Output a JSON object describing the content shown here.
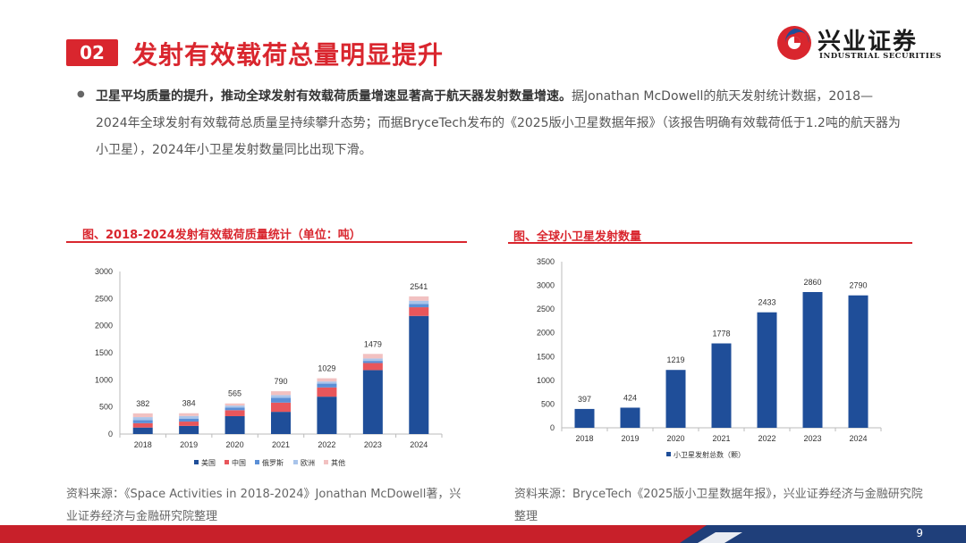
{
  "header": {
    "section_no": "02",
    "title": "发射有效载荷总量明显提升",
    "logo_cn": "兴业证券",
    "logo_en": "INDUSTRIAL SECURITIES"
  },
  "body": {
    "bold_text": "卫星平均质量的提升，推动全球发射有效载荷质量增速显著高于航天器发射数量增速。",
    "text": "据Jonathan McDowell的航天发射统计数据，2018—2024年全球发射有效载荷总质量呈持续攀升态势；而据BryceTech发布的《2025版小卫星数据年报》（该报告明确有效载荷低于1.2吨的航天器为小卫星），2024年小卫星发射数量同比出现下滑。"
  },
  "chart1": {
    "title": "图、2018-2024发射有效载荷质量统计（单位：吨）",
    "source": "资料来源：《Space Activities in 2018-2024》Jonathan McDowell著，兴业证券经济与金融研究院整理"
  },
  "chart2": {
    "title": "图、全球小卫星发射数量",
    "source": "资料来源：BryceTech《2025版小卫星数据年报》，兴业证券经济与金融研究院整理"
  },
  "page_number": "9",
  "chart_data": [
    {
      "type": "bar",
      "stacked": true,
      "categories": [
        "2018",
        "2019",
        "2020",
        "2021",
        "2022",
        "2023",
        "2024"
      ],
      "series": [
        {
          "name": "美国",
          "color": "#1f4e99",
          "values": [
            120,
            150,
            330,
            410,
            690,
            1180,
            2180
          ]
        },
        {
          "name": "中国",
          "color": "#e8565b",
          "values": [
            80,
            80,
            110,
            170,
            170,
            130,
            160
          ]
        },
        {
          "name": "俄罗斯",
          "color": "#5b8fd6",
          "values": [
            55,
            55,
            50,
            90,
            70,
            40,
            60
          ]
        },
        {
          "name": "欧洲",
          "color": "#a9c4ea",
          "values": [
            57,
            49,
            35,
            50,
            40,
            45,
            61
          ]
        },
        {
          "name": "其他",
          "color": "#f2c1c1",
          "values": [
            70,
            50,
            40,
            70,
            59,
            84,
            80
          ]
        }
      ],
      "totals": [
        382,
        384,
        565,
        790,
        1029,
        1479,
        2541
      ],
      "ylim": [
        0,
        3000
      ],
      "yticks": [
        0,
        500,
        1000,
        1500,
        2000,
        2500,
        3000
      ],
      "legend": "bottom"
    },
    {
      "type": "bar",
      "categories": [
        "2018",
        "2019",
        "2020",
        "2021",
        "2022",
        "2023",
        "2024"
      ],
      "series": [
        {
          "name": "小卫星发射总数（颗）",
          "color": "#1f4e99",
          "values": [
            397,
            424,
            1219,
            1778,
            2433,
            2860,
            2790
          ]
        }
      ],
      "ylim": [
        0,
        3500
      ],
      "yticks": [
        0,
        500,
        1000,
        1500,
        2000,
        2500,
        3000,
        3500
      ],
      "legend": "bottom"
    }
  ]
}
